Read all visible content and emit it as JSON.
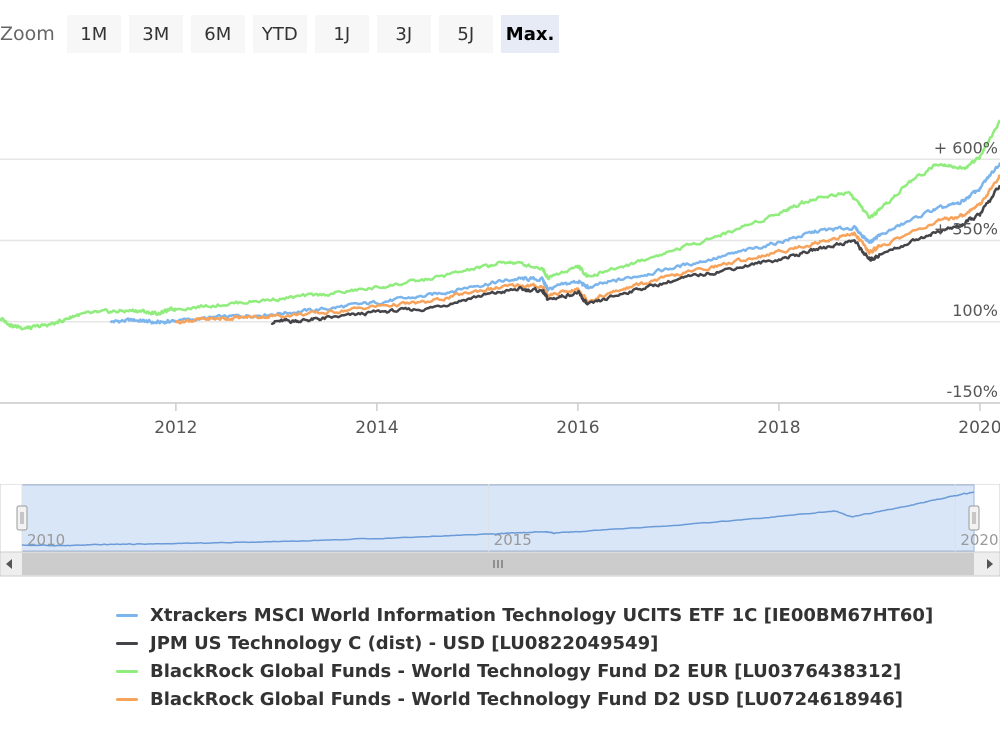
{
  "zoom": {
    "label": "Zoom",
    "buttons": [
      {
        "label": "1M",
        "active": false
      },
      {
        "label": "3M",
        "active": false
      },
      {
        "label": "6M",
        "active": false
      },
      {
        "label": "YTD",
        "active": false
      },
      {
        "label": "1J",
        "active": false
      },
      {
        "label": "3J",
        "active": false
      },
      {
        "label": "5J",
        "active": false
      },
      {
        "label": "Max.",
        "active": true
      }
    ]
  },
  "legend": [
    {
      "label": "Xtrackers MSCI World Information Technology UCITS ETF 1C [IE00BM67HT60]",
      "color": "#7cb5ec"
    },
    {
      "label": "JPM US Technology C (dist) - USD [LU0822049549]",
      "color": "#434348"
    },
    {
      "label": "BlackRock Global Funds - World Technology Fund D2 EUR [LU0376438312]",
      "color": "#90ed7d"
    },
    {
      "label": "BlackRock Global Funds - World Technology Fund D2 USD [LU0724618946]",
      "color": "#f7a35c"
    }
  ],
  "chart_data": {
    "type": "line",
    "title": "",
    "xlabel": "",
    "ylabel": "",
    "xlim": [
      2010.25,
      2020.2
    ],
    "ylim": [
      -150,
      850
    ],
    "y_ticks": [
      -150,
      100,
      350,
      600
    ],
    "y_tick_labels": [
      "-150%",
      "100%",
      "+ 350%",
      "+ 600%"
    ],
    "x_ticks": [
      2012,
      2014,
      2016,
      2018,
      2020
    ],
    "x_tick_labels": [
      "2012",
      "2014",
      "2016",
      "2018",
      "2020"
    ],
    "grid": true,
    "legend_position": "bottom",
    "series": [
      {
        "name": "Xtrackers MSCI World Information Technology UCITS ETF 1C [IE00BM67HT60]",
        "color": "#7cb5ec",
        "x": [
          2011.35,
          2011.6,
          2011.8,
          2012.0,
          2012.5,
          2013.0,
          2013.5,
          2014.0,
          2014.5,
          2015.0,
          2015.4,
          2015.65,
          2015.7,
          2016.0,
          2016.1,
          2016.5,
          2017.0,
          2017.5,
          2018.0,
          2018.4,
          2018.75,
          2018.9,
          2019.0,
          2019.5,
          2019.8,
          2020.0,
          2020.2
        ],
        "y": [
          100,
          105,
          97,
          103,
          115,
          125,
          140,
          160,
          180,
          212,
          232,
          230,
          200,
          225,
          205,
          235,
          270,
          305,
          345,
          380,
          390,
          345,
          365,
          440,
          465,
          510,
          590
        ]
      },
      {
        "name": "JPM US Technology C (dist) - USD [LU0822049549]",
        "color": "#434348",
        "x": [
          2012.95,
          2013.2,
          2013.5,
          2014.0,
          2014.5,
          2015.0,
          2015.4,
          2015.65,
          2015.7,
          2016.0,
          2016.1,
          2016.5,
          2017.0,
          2017.5,
          2018.0,
          2018.4,
          2018.75,
          2018.9,
          2019.0,
          2019.5,
          2019.8,
          2020.0,
          2020.2
        ],
        "y": [
          100,
          103,
          110,
          130,
          140,
          178,
          200,
          195,
          168,
          190,
          150,
          193,
          230,
          262,
          292,
          325,
          350,
          290,
          305,
          370,
          395,
          430,
          520
        ]
      },
      {
        "name": "BlackRock Global Funds - World Technology Fund D2 EUR [LU0376438312]",
        "color": "#90ed7d",
        "x": [
          2010.25,
          2010.4,
          2010.55,
          2010.8,
          2011.0,
          2011.3,
          2011.6,
          2011.8,
          2012.0,
          2012.5,
          2013.0,
          2013.5,
          2014.0,
          2014.5,
          2015.0,
          2015.3,
          2015.65,
          2015.7,
          2016.0,
          2016.1,
          2016.5,
          2017.0,
          2017.5,
          2018.0,
          2018.3,
          2018.7,
          2018.9,
          2019.0,
          2019.3,
          2019.6,
          2019.85,
          2020.0,
          2020.2
        ],
        "y": [
          110,
          85,
          80,
          95,
          120,
          130,
          135,
          125,
          140,
          155,
          170,
          185,
          205,
          230,
          265,
          285,
          265,
          235,
          270,
          240,
          275,
          325,
          375,
          435,
          475,
          500,
          420,
          440,
          530,
          590,
          570,
          610,
          720
        ]
      },
      {
        "name": "BlackRock Global Funds - World Technology Fund D2 USD [LU0724618946]",
        "color": "#f7a35c",
        "x": [
          2012.0,
          2012.3,
          2012.6,
          2013.0,
          2013.5,
          2014.0,
          2014.5,
          2015.0,
          2015.4,
          2015.65,
          2015.7,
          2016.0,
          2016.1,
          2016.5,
          2017.0,
          2017.5,
          2018.0,
          2018.4,
          2018.75,
          2018.9,
          2019.0,
          2019.5,
          2019.8,
          2020.0,
          2020.2
        ],
        "y": [
          100,
          108,
          112,
          118,
          128,
          148,
          160,
          195,
          212,
          208,
          180,
          200,
          165,
          205,
          245,
          280,
          315,
          345,
          372,
          315,
          330,
          400,
          425,
          460,
          550
        ]
      }
    ],
    "navigator": {
      "x_tick_labels": [
        "2010",
        "2015",
        "2020"
      ],
      "series_x": [
        2010.0,
        2010.5,
        2011.0,
        2011.5,
        2012.0,
        2013.0,
        2014.0,
        2015.0,
        2015.6,
        2015.7,
        2016.0,
        2017.0,
        2018.0,
        2018.7,
        2018.9,
        2019.5,
        2020.0,
        2020.2
      ],
      "series_y": [
        100,
        95,
        110,
        115,
        125,
        150,
        185,
        230,
        255,
        240,
        260,
        330,
        420,
        500,
        430,
        560,
        680,
        720
      ]
    }
  }
}
